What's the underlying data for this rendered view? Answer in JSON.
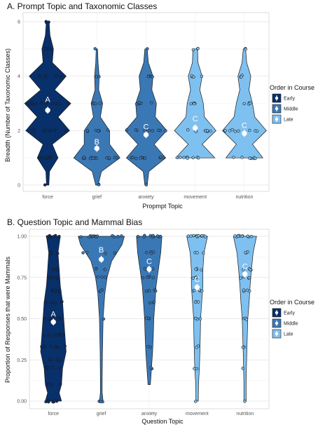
{
  "chart_data": [
    {
      "type": "violin",
      "title": "A. Prompt Topic and Taxonomic Classes",
      "xlabel": "Propmpt Topic",
      "ylabel": "Breadth (Number of Taxonomic Classes)",
      "ylim": [
        0,
        6
      ],
      "yticks": [
        "0",
        "2",
        "4",
        "6"
      ],
      "grid": true,
      "legend": {
        "title": "Order in Course",
        "placement": "right",
        "entries": [
          {
            "label": "Early",
            "color": "#08306b"
          },
          {
            "label": "Middle",
            "color": "#3a78b5"
          },
          {
            "label": "Late",
            "color": "#7ec0f0"
          }
        ]
      },
      "categories": [
        "force",
        "grief",
        "anxiety",
        "movement",
        "nutrition"
      ],
      "group": [
        "Early",
        "Middle",
        "Middle",
        "Late",
        "Late"
      ],
      "colors": [
        "#08306b",
        "#3a78b5",
        "#3a78b5",
        "#7ec0f0",
        "#7ec0f0"
      ],
      "means": [
        2.75,
        1.35,
        1.85,
        2.1,
        1.9
      ],
      "letters": [
        "A",
        "B",
        "C",
        "C",
        "C"
      ],
      "letter_y": [
        3.15,
        1.6,
        2.15,
        2.45,
        2.2
      ],
      "density": [
        [
          [
            0,
            0.05
          ],
          [
            0.5,
            0.08
          ],
          [
            1,
            0.45
          ],
          [
            1.5,
            0.2
          ],
          [
            2,
            0.95
          ],
          [
            2.5,
            0.45
          ],
          [
            3,
            1.0
          ],
          [
            3.5,
            0.3
          ],
          [
            4,
            0.8
          ],
          [
            4.5,
            0.2
          ],
          [
            5,
            0.25
          ],
          [
            5.5,
            0.1
          ],
          [
            6,
            0.06
          ]
        ],
        [
          [
            0,
            0.05
          ],
          [
            0.5,
            0.2
          ],
          [
            1,
            1.0
          ],
          [
            1.5,
            0.55
          ],
          [
            2,
            0.55
          ],
          [
            2.5,
            0.15
          ],
          [
            3,
            0.25
          ],
          [
            3.5,
            0.08
          ],
          [
            4,
            0.1
          ],
          [
            4.5,
            0.05
          ],
          [
            5,
            0.03
          ]
        ],
        [
          [
            0,
            0.05
          ],
          [
            0.5,
            0.12
          ],
          [
            1,
            0.85
          ],
          [
            1.5,
            0.35
          ],
          [
            2,
            0.9
          ],
          [
            2.5,
            0.4
          ],
          [
            3,
            0.45
          ],
          [
            3.5,
            0.25
          ],
          [
            4,
            0.3
          ],
          [
            4.5,
            0.1
          ],
          [
            5,
            0.05
          ]
        ],
        [
          [
            1,
            0.85
          ],
          [
            1.5,
            0.3
          ],
          [
            2,
            0.9
          ],
          [
            2.5,
            0.4
          ],
          [
            3,
            0.35
          ],
          [
            3.5,
            0.2
          ],
          [
            4,
            0.3
          ],
          [
            4.5,
            0.12
          ],
          [
            5,
            0.1
          ]
        ],
        [
          [
            1,
            0.8
          ],
          [
            1.5,
            0.35
          ],
          [
            2,
            0.95
          ],
          [
            2.5,
            0.45
          ],
          [
            3,
            0.35
          ],
          [
            3.5,
            0.2
          ],
          [
            4,
            0.28
          ],
          [
            4.5,
            0.1
          ],
          [
            5,
            0.05
          ]
        ]
      ],
      "points": [
        [
          [
            1,
            9
          ],
          [
            2,
            10
          ],
          [
            3,
            12
          ],
          [
            4,
            8
          ],
          [
            5,
            3
          ],
          [
            6,
            3
          ],
          [
            0,
            1
          ]
        ],
        [
          [
            1,
            14
          ],
          [
            2,
            7
          ],
          [
            3,
            4
          ],
          [
            4,
            2
          ],
          [
            5,
            1
          ],
          [
            0,
            2
          ]
        ],
        [
          [
            1,
            10
          ],
          [
            2,
            10
          ],
          [
            3,
            6
          ],
          [
            4,
            4
          ],
          [
            5,
            1
          ],
          [
            0,
            1
          ]
        ],
        [
          [
            1,
            8
          ],
          [
            2,
            8
          ],
          [
            3,
            4
          ],
          [
            4,
            4
          ],
          [
            5,
            3
          ]
        ],
        [
          [
            1,
            7
          ],
          [
            2,
            9
          ],
          [
            3,
            4
          ],
          [
            4,
            3
          ],
          [
            5,
            2
          ]
        ]
      ]
    },
    {
      "type": "violin",
      "title": "B. Question Topic and Mammal Bias",
      "xlabel": "Question Topic",
      "ylabel": "Proportion of Responses that were Mammals",
      "ylim": [
        0,
        1
      ],
      "yticks": [
        "0.00",
        "0.25",
        "0.50",
        "0.75",
        "1.00"
      ],
      "grid": true,
      "legend": {
        "title": "Order in Course",
        "placement": "right",
        "entries": [
          {
            "label": "Early",
            "color": "#08306b"
          },
          {
            "label": "Middle",
            "color": "#3a78b5"
          },
          {
            "label": "Late",
            "color": "#7ec0f0"
          }
        ]
      },
      "categories": [
        "force",
        "grief",
        "anxiety",
        "movement",
        "nutrition"
      ],
      "group": [
        "Early",
        "Middle",
        "Middle",
        "Late",
        "Late"
      ],
      "colors": [
        "#08306b",
        "#3a78b5",
        "#3a78b5",
        "#7ec0f0",
        "#7ec0f0"
      ],
      "means": [
        0.48,
        0.86,
        0.8,
        0.69,
        0.77
      ],
      "letters": [
        "A",
        "B",
        "C",
        "C",
        "C"
      ],
      "letter_y": [
        0.53,
        0.92,
        0.85,
        0.74,
        0.82
      ],
      "density": [
        [
          [
            0,
            0.35
          ],
          [
            0.05,
            0.25
          ],
          [
            0.1,
            0.35
          ],
          [
            0.2,
            0.4
          ],
          [
            0.3,
            0.55
          ],
          [
            0.4,
            0.5
          ],
          [
            0.5,
            0.45
          ],
          [
            0.6,
            0.4
          ],
          [
            0.7,
            0.3
          ],
          [
            0.8,
            0.25
          ],
          [
            0.9,
            0.2
          ],
          [
            1.0,
            0.3
          ]
        ],
        [
          [
            0,
            0.08
          ],
          [
            0.05,
            0.04
          ],
          [
            0.15,
            0.04
          ],
          [
            0.3,
            0.05
          ],
          [
            0.5,
            0.08
          ],
          [
            0.65,
            0.15
          ],
          [
            0.75,
            0.25
          ],
          [
            0.85,
            0.45
          ],
          [
            0.95,
            0.9
          ],
          [
            1.0,
            1.0
          ]
        ],
        [
          [
            0.1,
            0.05
          ],
          [
            0.2,
            0.1
          ],
          [
            0.3,
            0.15
          ],
          [
            0.4,
            0.18
          ],
          [
            0.5,
            0.2
          ],
          [
            0.6,
            0.25
          ],
          [
            0.7,
            0.3
          ],
          [
            0.8,
            0.4
          ],
          [
            0.9,
            0.5
          ],
          [
            1.0,
            0.55
          ]
        ],
        [
          [
            0,
            0.05
          ],
          [
            0.1,
            0.06
          ],
          [
            0.2,
            0.1
          ],
          [
            0.3,
            0.12
          ],
          [
            0.4,
            0.14
          ],
          [
            0.5,
            0.15
          ],
          [
            0.6,
            0.2
          ],
          [
            0.7,
            0.25
          ],
          [
            0.8,
            0.25
          ],
          [
            0.9,
            0.3
          ],
          [
            1.0,
            0.45
          ]
        ],
        [
          [
            0,
            0.05
          ],
          [
            0.1,
            0.05
          ],
          [
            0.2,
            0.06
          ],
          [
            0.3,
            0.08
          ],
          [
            0.4,
            0.1
          ],
          [
            0.5,
            0.12
          ],
          [
            0.6,
            0.18
          ],
          [
            0.7,
            0.22
          ],
          [
            0.8,
            0.28
          ],
          [
            0.9,
            0.35
          ],
          [
            1.0,
            0.5
          ]
        ]
      ],
      "points": [
        [
          [
            0,
            8
          ],
          [
            0.1,
            4
          ],
          [
            0.2,
            5
          ],
          [
            0.25,
            6
          ],
          [
            0.33,
            10
          ],
          [
            0.4,
            8
          ],
          [
            0.5,
            9
          ],
          [
            0.6,
            6
          ],
          [
            0.67,
            7
          ],
          [
            0.75,
            5
          ],
          [
            0.8,
            4
          ],
          [
            0.9,
            3
          ],
          [
            1.0,
            10
          ]
        ],
        [
          [
            0,
            3
          ],
          [
            0.5,
            1
          ],
          [
            0.67,
            3
          ],
          [
            0.75,
            3
          ],
          [
            0.8,
            3
          ],
          [
            0.9,
            4
          ],
          [
            1.0,
            14
          ]
        ],
        [
          [
            0.2,
            2
          ],
          [
            0.33,
            2
          ],
          [
            0.5,
            3
          ],
          [
            0.6,
            3
          ],
          [
            0.67,
            4
          ],
          [
            0.75,
            5
          ],
          [
            0.8,
            5
          ],
          [
            0.9,
            4
          ],
          [
            1.0,
            10
          ]
        ],
        [
          [
            0,
            1
          ],
          [
            0.2,
            2
          ],
          [
            0.33,
            2
          ],
          [
            0.5,
            3
          ],
          [
            0.6,
            3
          ],
          [
            0.67,
            5
          ],
          [
            0.75,
            4
          ],
          [
            0.8,
            4
          ],
          [
            0.9,
            3
          ],
          [
            1.0,
            12
          ]
        ],
        [
          [
            0,
            1
          ],
          [
            0.2,
            1
          ],
          [
            0.33,
            2
          ],
          [
            0.5,
            3
          ],
          [
            0.67,
            4
          ],
          [
            0.75,
            4
          ],
          [
            0.8,
            4
          ],
          [
            0.9,
            3
          ],
          [
            1.0,
            12
          ]
        ]
      ]
    }
  ]
}
